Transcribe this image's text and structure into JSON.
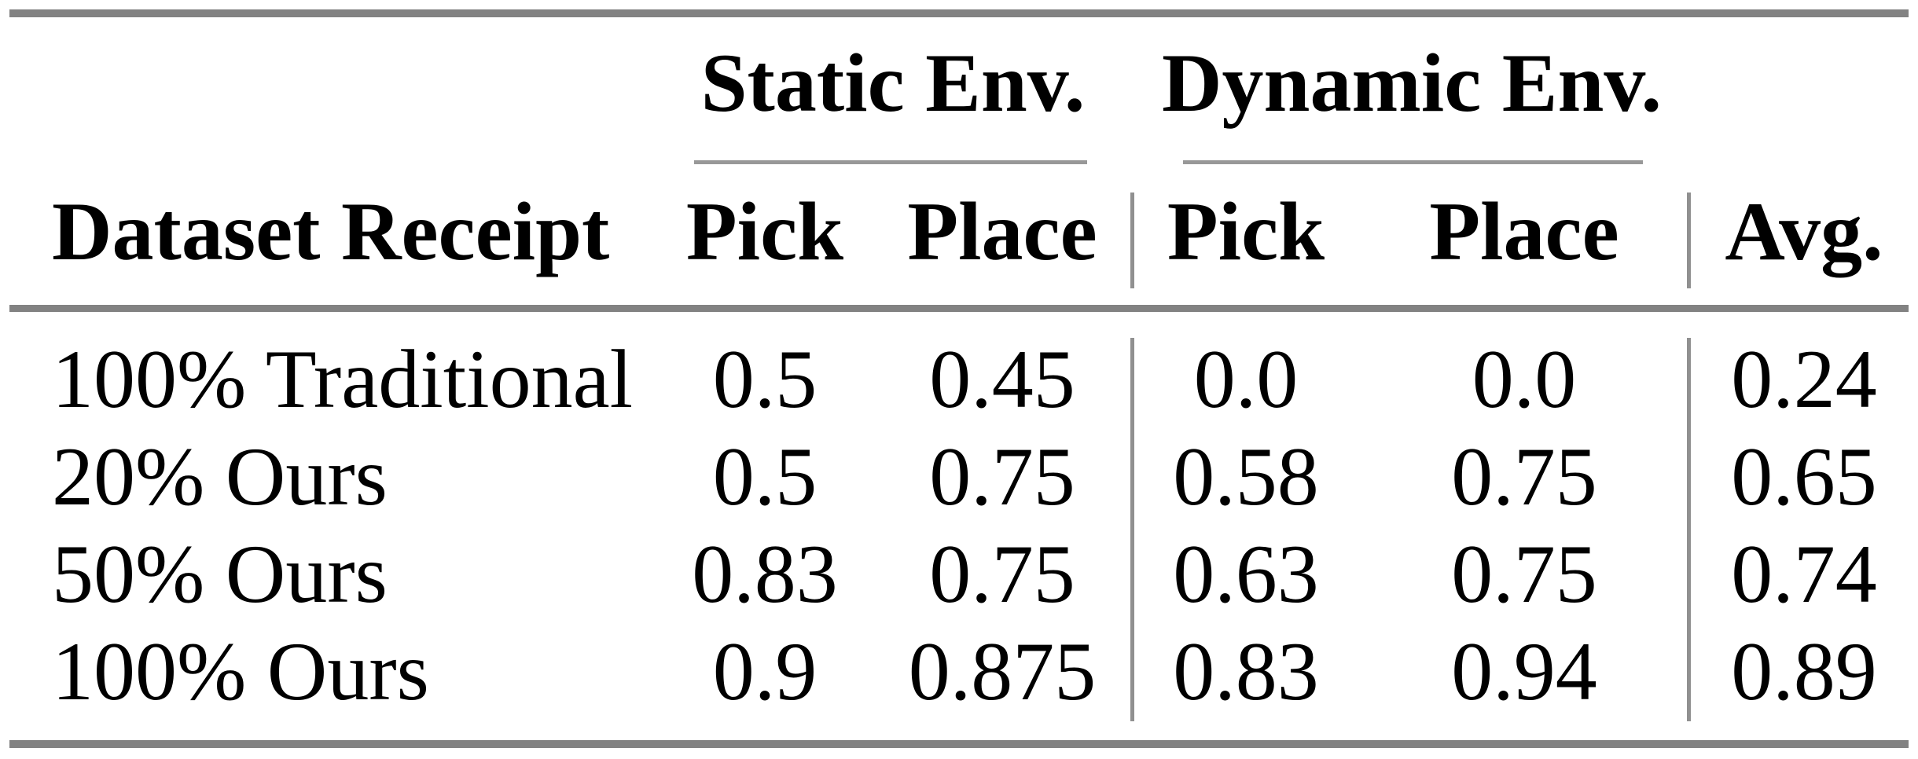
{
  "table": {
    "title_groups": {
      "static": "Static Env.",
      "dynamic": "Dynamic Env."
    },
    "headers": {
      "dataset": "Dataset Receipt",
      "static_pick": "Pick",
      "static_place": "Place",
      "dynamic_pick": "Pick",
      "dynamic_place": "Place",
      "avg": "Avg."
    },
    "rows": [
      {
        "label": "100% Traditional",
        "values": [
          "0.5",
          "0.45",
          "0.0",
          "0.0",
          "0.24"
        ]
      },
      {
        "label": "20% Ours",
        "values": [
          "0.5",
          "0.75",
          "0.58",
          "0.75",
          "0.65"
        ]
      },
      {
        "label": "50% Ours",
        "values": [
          "0.83",
          "0.75",
          "0.63",
          "0.75",
          "0.74"
        ]
      },
      {
        "label": "100% Ours",
        "values": [
          "0.9",
          "0.875",
          "0.83",
          "0.94",
          "0.89"
        ]
      }
    ],
    "colors": {
      "rule_thick": "#828282",
      "rule_thin": "#989898",
      "vline": "#909090",
      "text": "#000000",
      "background": "#ffffff"
    }
  },
  "chart_data": {
    "type": "table",
    "title": "",
    "column_groups": [
      "Static Env.",
      "Dynamic Env."
    ],
    "columns": [
      "Dataset Receipt",
      "Static Env. Pick",
      "Static Env. Place",
      "Dynamic Env. Pick",
      "Dynamic Env. Place",
      "Avg."
    ],
    "rows": [
      [
        "100% Traditional",
        0.5,
        0.45,
        0.0,
        0.0,
        0.24
      ],
      [
        "20% Ours",
        0.5,
        0.75,
        0.58,
        0.75,
        0.65
      ],
      [
        "50% Ours",
        0.83,
        0.75,
        0.63,
        0.75,
        0.74
      ],
      [
        "100% Ours",
        0.9,
        0.875,
        0.83,
        0.94,
        0.89
      ]
    ]
  }
}
